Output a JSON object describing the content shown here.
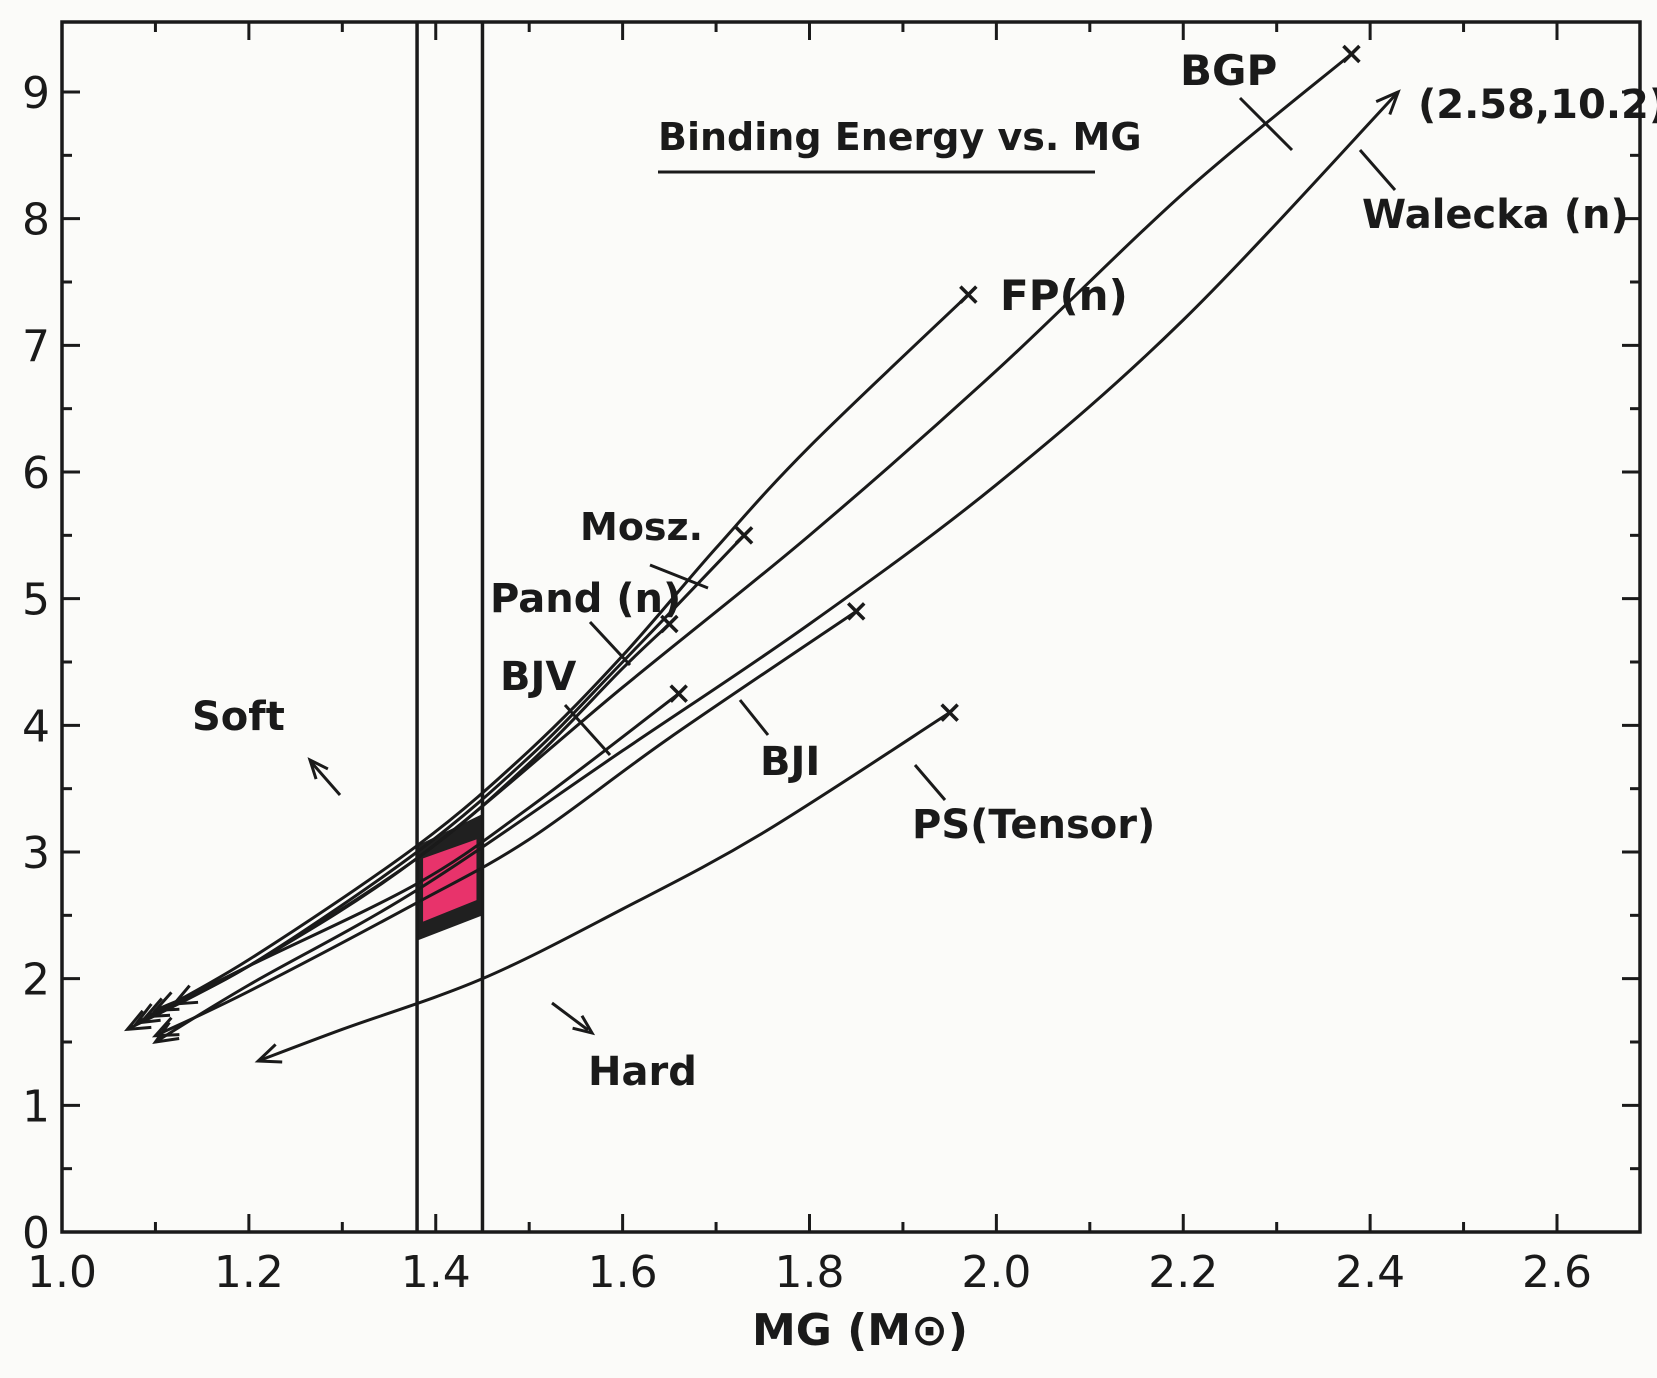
{
  "chart_data": {
    "type": "line",
    "title": "Binding Energy vs. MG",
    "xlabel": "MG (M⊙)",
    "ylabel": "",
    "xlim": [
      1.0,
      2.64
    ],
    "ylim": [
      0,
      9.5
    ],
    "x_ticks": [
      "1.0",
      "1.2",
      "1.4",
      "1.6",
      "1.8",
      "2.0",
      "2.2",
      "2.4",
      "2.6"
    ],
    "y_ticks": [
      "0",
      "1",
      "2",
      "3",
      "4",
      "5",
      "6",
      "7",
      "8",
      "9"
    ],
    "grid": false,
    "legend": "none (curves labeled directly)",
    "vertical_lines": [
      1.38,
      1.45
    ],
    "shaded_region": {
      "x": [
        1.38,
        1.45
      ],
      "y": [
        2.3,
        3.3
      ],
      "color": "#e8336b"
    },
    "series": [
      {
        "name": "BGP",
        "x": [
          1.07,
          1.2,
          1.38,
          1.6,
          1.8,
          2.0,
          2.2,
          2.38
        ],
        "y": [
          1.6,
          2.1,
          2.95,
          4.3,
          5.5,
          6.8,
          8.2,
          9.3
        ],
        "end": "x"
      },
      {
        "name": "Walecka (n)",
        "x": [
          1.1,
          1.2,
          1.38,
          1.6,
          1.8,
          2.0,
          2.2,
          2.43
        ],
        "y": [
          1.5,
          1.95,
          2.7,
          3.8,
          4.8,
          5.9,
          7.2,
          9.0
        ],
        "end": "arrow",
        "end_label": "(2.58,10.2)"
      },
      {
        "name": "FP(n)",
        "x": [
          1.08,
          1.2,
          1.38,
          1.5,
          1.6,
          1.7,
          1.8,
          1.97
        ],
        "y": [
          1.65,
          2.15,
          3.05,
          3.8,
          4.55,
          5.4,
          6.2,
          7.4
        ],
        "end": "x"
      },
      {
        "name": "Mosz.",
        "x": [
          1.09,
          1.2,
          1.38,
          1.5,
          1.6,
          1.73
        ],
        "y": [
          1.7,
          2.1,
          3.0,
          3.75,
          4.5,
          5.5
        ],
        "end": "x"
      },
      {
        "name": "Pand (n)",
        "x": [
          1.1,
          1.2,
          1.38,
          1.5,
          1.6,
          1.65
        ],
        "y": [
          1.75,
          2.1,
          2.95,
          3.7,
          4.45,
          4.8
        ],
        "end": "x"
      },
      {
        "name": "BJⅤ",
        "x": [
          1.12,
          1.2,
          1.38,
          1.5,
          1.66
        ],
        "y": [
          1.8,
          2.1,
          2.75,
          3.35,
          4.25
        ],
        "end": "x"
      },
      {
        "name": "BJI",
        "x": [
          1.1,
          1.2,
          1.38,
          1.5,
          1.65,
          1.85
        ],
        "y": [
          1.55,
          1.9,
          2.6,
          3.1,
          3.9,
          4.9
        ],
        "end": "x"
      },
      {
        "name": "PS(Tensor)",
        "x": [
          1.21,
          1.3,
          1.45,
          1.6,
          1.75,
          1.95
        ],
        "y": [
          1.35,
          1.6,
          2.0,
          2.55,
          3.15,
          4.1
        ],
        "end": "x"
      }
    ],
    "annotations": [
      {
        "text": "Soft",
        "arrow_direction": "up-left"
      },
      {
        "text": "Hard",
        "arrow_direction": "down-right"
      }
    ]
  }
}
